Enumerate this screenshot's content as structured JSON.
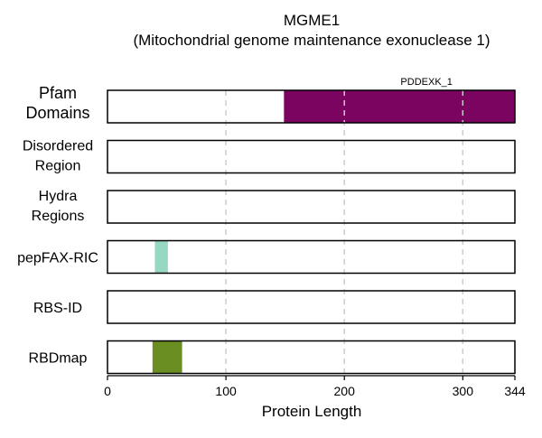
{
  "chart_data": {
    "type": "bar",
    "title": "MGME1",
    "subtitle": "(Mitochondrial genome maintenance exonuclease 1)",
    "xlabel": "Protein Length",
    "xlim": [
      0,
      344
    ],
    "xticks": [
      0,
      100,
      200,
      300,
      344
    ],
    "grid": {
      "x": true,
      "style": "dashed"
    },
    "tracks": [
      {
        "label": "Pfam Domains",
        "features": [
          {
            "name": "PDDEXK_1",
            "start": 149,
            "end": 344,
            "color": "#7b0461"
          }
        ]
      },
      {
        "label": "Disordered Region",
        "features": []
      },
      {
        "label": "Hydra Regions",
        "features": []
      },
      {
        "label": "pepFAX-RIC",
        "features": [
          {
            "name": "",
            "start": 40,
            "end": 51,
            "color": "#96d8c1"
          }
        ]
      },
      {
        "label": "RBS-ID",
        "features": []
      },
      {
        "label": "RBDmap",
        "features": [
          {
            "name": "",
            "start": 38,
            "end": 63,
            "color": "#6b8e23"
          }
        ]
      }
    ]
  }
}
